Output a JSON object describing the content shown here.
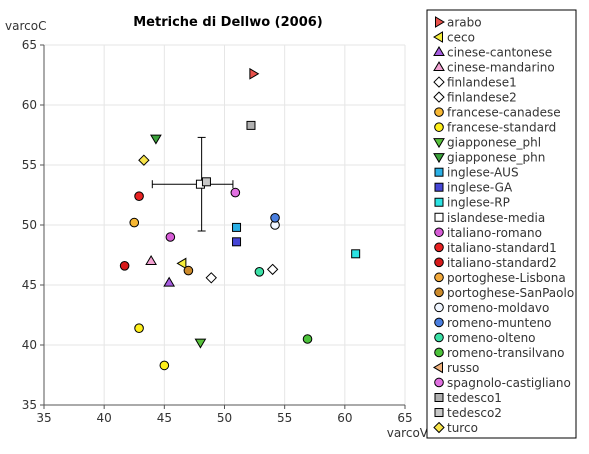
{
  "chart_data": {
    "type": "scatter",
    "title": "Metriche di Dellwo (2006)",
    "xlabel": "varcoV",
    "ylabel": "varcoC",
    "xlim": [
      35,
      65
    ],
    "ylim": [
      35,
      65
    ],
    "x_ticks": [
      "35",
      "40",
      "45",
      "50",
      "55",
      "60",
      "65"
    ],
    "y_ticks": [
      "35",
      "40",
      "45",
      "50",
      "55",
      "60",
      "65"
    ],
    "grid": true,
    "legend_position": "right",
    "series": [
      {
        "name": "arabo",
        "marker": "triangle-right",
        "color": "#e8514b",
        "points": [
          [
            52.4,
            62.6
          ]
        ]
      },
      {
        "name": "ceco",
        "marker": "triangle-left",
        "color": "#f5ed3a",
        "points": [
          [
            46.5,
            46.8
          ]
        ]
      },
      {
        "name": "cinese-cantonese",
        "marker": "triangle-up",
        "color": "#a65ce0",
        "points": [
          [
            45.4,
            45.2
          ]
        ]
      },
      {
        "name": "cinese-mandarino",
        "marker": "triangle-up",
        "color": "#f2a1d1",
        "points": [
          [
            43.9,
            47.0
          ]
        ]
      },
      {
        "name": "finlandese1",
        "marker": "diamond",
        "color": "#ffffff",
        "points": [
          [
            48.9,
            45.6
          ]
        ]
      },
      {
        "name": "finlandese2",
        "marker": "diamond",
        "color": "#ffffff",
        "points": [
          [
            54.0,
            46.3
          ]
        ]
      },
      {
        "name": "francese-canadese",
        "marker": "circle",
        "color": "#f7b733",
        "points": [
          [
            42.5,
            50.2
          ]
        ]
      },
      {
        "name": "francese-standard",
        "marker": "circle",
        "color": "#ffef1a",
        "points": [
          [
            42.9,
            41.4
          ],
          [
            45.0,
            38.3
          ]
        ]
      },
      {
        "name": "giapponese_phl",
        "marker": "triangle-down",
        "color": "#58c23b",
        "points": [
          [
            48.0,
            40.2
          ]
        ]
      },
      {
        "name": "giapponese_phn",
        "marker": "triangle-down",
        "color": "#3ba23b",
        "points": [
          [
            44.3,
            57.2
          ]
        ]
      },
      {
        "name": "inglese-AUS",
        "marker": "square",
        "color": "#2ab0e6",
        "points": [
          [
            51.0,
            49.8
          ]
        ]
      },
      {
        "name": "inglese-GA",
        "marker": "square",
        "color": "#4646d6",
        "points": [
          [
            51.0,
            48.6
          ]
        ]
      },
      {
        "name": "inglese-RP",
        "marker": "square",
        "color": "#2be3e3",
        "points": [
          [
            60.9,
            47.6
          ]
        ]
      },
      {
        "name": "islandese-media",
        "marker": "square",
        "color": "#ffffff",
        "points": [
          [
            48.0,
            53.4
          ]
        ]
      },
      {
        "name": "italiano-romano",
        "marker": "circle",
        "color": "#d65cd6",
        "points": [
          [
            45.5,
            49.0
          ]
        ]
      },
      {
        "name": "italiano-standard1",
        "marker": "circle",
        "color": "#e82222",
        "points": [
          [
            42.9,
            52.4
          ]
        ]
      },
      {
        "name": "italiano-standard2",
        "marker": "circle",
        "color": "#d61a1a",
        "points": [
          [
            41.7,
            46.6
          ]
        ]
      },
      {
        "name": "portoghese-Lisbona",
        "marker": "circle",
        "color": "#f2a93b",
        "points": []
      },
      {
        "name": "portoghese-SanPaolo",
        "marker": "circle",
        "color": "#cc8a2a",
        "points": [
          [
            47.0,
            46.2
          ]
        ]
      },
      {
        "name": "romeno-moldavo",
        "marker": "circle",
        "color": "#f0f6ff",
        "points": [
          [
            54.2,
            50.0
          ]
        ]
      },
      {
        "name": "romeno-munteno",
        "marker": "circle",
        "color": "#4a7fe0",
        "points": [
          [
            54.2,
            50.6
          ]
        ]
      },
      {
        "name": "romeno-olteno",
        "marker": "circle",
        "color": "#3be0a6",
        "points": [
          [
            52.9,
            46.1
          ]
        ]
      },
      {
        "name": "romeno-transilvano",
        "marker": "circle",
        "color": "#4cc23b",
        "points": [
          [
            56.9,
            40.5
          ]
        ]
      },
      {
        "name": "russo",
        "marker": "triangle-left",
        "color": "#f0b07a",
        "points": []
      },
      {
        "name": "spagnolo-castigliano",
        "marker": "circle",
        "color": "#e070e0",
        "points": [
          [
            50.9,
            52.7
          ]
        ]
      },
      {
        "name": "tedesco1",
        "marker": "square",
        "color": "#b0b0b0",
        "points": [
          [
            52.2,
            58.3
          ]
        ]
      },
      {
        "name": "tedesco2",
        "marker": "square",
        "color": "#c8c8c8",
        "points": [
          [
            48.5,
            53.6
          ]
        ]
      },
      {
        "name": "turco",
        "marker": "diamond",
        "color": "#f7e34a",
        "points": [
          [
            43.3,
            55.4
          ]
        ]
      }
    ],
    "error_bar": {
      "x": 48.1,
      "y": 53.4,
      "x_low": 44.0,
      "x_high": 50.7,
      "y_low": 49.5,
      "y_high": 57.3
    }
  }
}
